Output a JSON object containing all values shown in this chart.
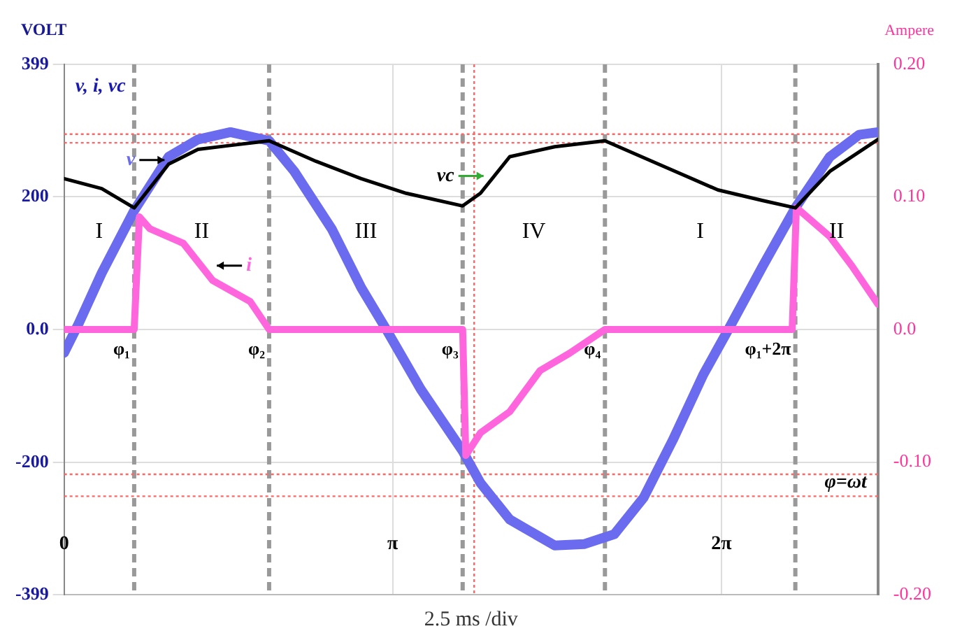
{
  "chart_data": {
    "type": "line",
    "title": "v, i, vc",
    "xlabel": "2.5 ms /div",
    "ylabel": "VOLT",
    "y2label": "Ampere",
    "xlim": [
      0,
      7.78
    ],
    "xticks": [
      {
        "value": 0,
        "label": "0"
      },
      {
        "value": 3.14159,
        "label": "π"
      },
      {
        "value": 6.28318,
        "label": "2π"
      }
    ],
    "ylim": [
      -399,
      399
    ],
    "yticks": [
      399,
      200,
      {
        "value": 0,
        "label": "0.0"
      },
      -200,
      -399
    ],
    "y2lim": [
      -0.2,
      0.2
    ],
    "y2ticks": [
      {
        "value": 0.2,
        "label": "0.20"
      },
      {
        "value": 0.1,
        "label": "0.10"
      },
      {
        "value": 0,
        "label": "0.0"
      },
      {
        "value": -0.1,
        "label": "-0.10"
      },
      {
        "value": -0.2,
        "label": "-0.20"
      }
    ],
    "grid": true,
    "legend": false,
    "marker": "none",
    "line_style": "solid",
    "series": [
      {
        "color": "#6b6bf0",
        "x": [
          0,
          0.14,
          0.36,
          0.67,
          1.0,
          1.28,
          1.59,
          1.96,
          2.2,
          2.56,
          2.84,
          3.08,
          3.41,
          3.81,
          3.98,
          4.26,
          4.69,
          4.97,
          5.26,
          5.54,
          5.82,
          6.11,
          6.35,
          6.68,
          6.99,
          7.32,
          7.6,
          7.78
        ],
        "values": [
          -35,
          9,
          85,
          179,
          260,
          286,
          297,
          284,
          238,
          151,
          63,
          0,
          -90,
          -183,
          -231,
          -286,
          -325,
          -323,
          -308,
          -253,
          -166,
          -68,
          0,
          96,
          183,
          260,
          293,
          297
        ]
      },
      {
        "color": "#ff66dd",
        "axis": "y2",
        "x": [
          0,
          0.57,
          0.67,
          0.72,
          0.82,
          1.14,
          1.42,
          1.78,
          1.96,
          2.84,
          3.81,
          3.84,
          3.98,
          4.26,
          4.55,
          4.83,
          5.17,
          5.97,
          6.96,
          7.0,
          7.32,
          7.53,
          7.78
        ],
        "values": [
          0,
          0,
          0,
          0.085,
          0.076,
          0.065,
          0.037,
          0.021,
          0,
          0,
          0,
          -0.095,
          -0.078,
          -0.062,
          -0.031,
          -0.018,
          0,
          0,
          0,
          0.092,
          0.07,
          0.048,
          0.019
        ]
      },
      {
        "color": "#000000",
        "x": [
          0,
          0.36,
          0.67,
          1.0,
          1.28,
          1.59,
          1.96,
          2.41,
          2.84,
          3.27,
          3.81,
          3.98,
          4.26,
          4.69,
          5.17,
          5.68,
          6.25,
          6.68,
          6.99,
          7.32,
          7.78
        ],
        "values": [
          227,
          212,
          183,
          249,
          271,
          277,
          284,
          253,
          227,
          205,
          186,
          205,
          260,
          275,
          284,
          249,
          210,
          194,
          183,
          238,
          286
        ]
      }
    ],
    "ref_lines": [
      {
        "axis": "x",
        "value": 0.67,
        "label": "φ₁",
        "color": "#999999",
        "line_style": "dashed"
      },
      {
        "axis": "x",
        "value": 1.96,
        "label": "φ₂",
        "color": "#999999",
        "line_style": "dashed"
      },
      {
        "axis": "x",
        "value": 3.81,
        "label": "φ₃",
        "color": "#999999",
        "line_style": "dashed"
      },
      {
        "axis": "x",
        "value": 5.17,
        "label": "φ₄",
        "color": "#999999",
        "line_style": "dashed"
      },
      {
        "axis": "x",
        "value": 6.99,
        "label": "φ₁+2π",
        "color": "#999999",
        "line_style": "dashed"
      },
      {
        "axis": "x",
        "value": 3.92,
        "color": "#ff6666",
        "line_style": "dotted"
      },
      {
        "axis": "y",
        "value": 294,
        "color": "#ff6666",
        "line_style": "dotted"
      },
      {
        "axis": "y",
        "value": 281,
        "color": "#ff6666",
        "line_style": "dotted"
      },
      {
        "axis": "y",
        "value": -218,
        "color": "#ff6666",
        "line_style": "dotted"
      },
      {
        "axis": "y",
        "value": -251,
        "color": "#ff6666",
        "line_style": "dotted"
      }
    ],
    "annotations": [
      {
        "text": "v",
        "x": 1.0,
        "y": 255
      },
      {
        "text": "i",
        "x": 1.42,
        "y": 96
      },
      {
        "text": "vc",
        "x": 4.05,
        "y": 231
      },
      "I",
      "II",
      "III",
      "IV",
      "I",
      "II",
      "φ=ωt"
    ]
  }
}
